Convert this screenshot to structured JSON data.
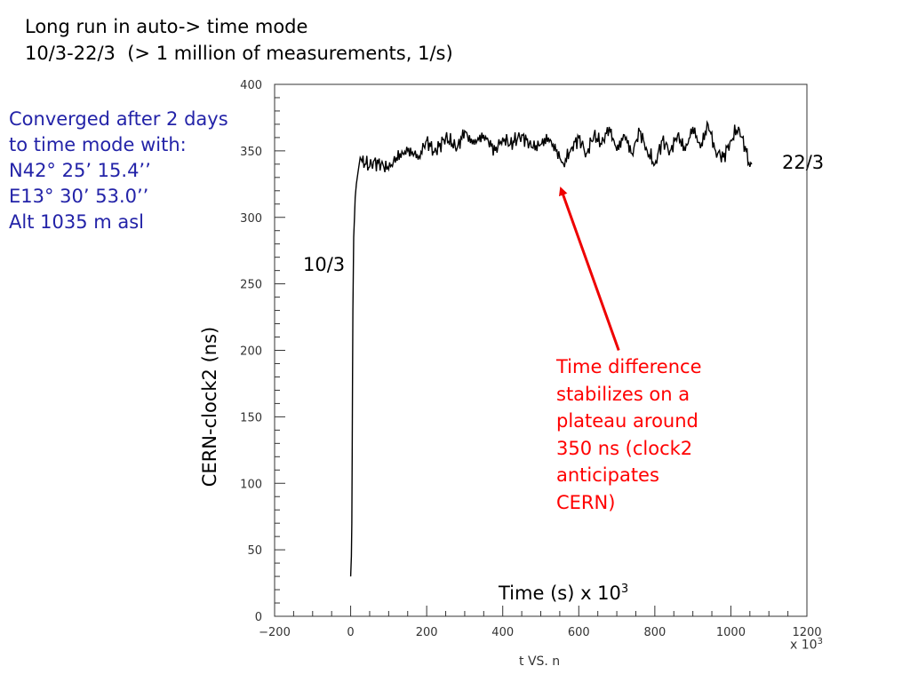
{
  "slide": {
    "title_line1": "Long run in auto-> time mode",
    "title_line2": "10/3-22/3  (> 1 million of measurements, 1/s)",
    "note_blue": [
      "Converged after 2 days",
      "to time mode with:",
      "N42° 25’ 15.4’’",
      "E13° 30’  53.0’’",
      "Alt 1035 m asl"
    ],
    "note_red": [
      "Time difference",
      "stabilizes on a",
      "plateau around",
      "350 ns (clock2",
      "anticipates",
      "CERN)"
    ],
    "date_start": "10/3",
    "date_end": "22/3",
    "xlabel_text": "Time (s) x 10",
    "xlabel_exp": "3",
    "ylabel_text": "CERN-clock2 (ns)",
    "caption": "t VS. n",
    "multiplier_text": "x 10",
    "multiplier_exp": "3",
    "colors": {
      "blue_note": "#2323a8",
      "red_note": "#ff0000",
      "arrow": "#ee0000",
      "trace": "#000000"
    }
  },
  "chart_data": {
    "type": "line",
    "xlim": [
      -200,
      1200
    ],
    "ylim": [
      0,
      400
    ],
    "x_ticks": [
      -200,
      0,
      200,
      400,
      600,
      800,
      1000,
      1200
    ],
    "x_tick_labels": [
      "−200",
      "0",
      "200",
      "400",
      "600",
      "800",
      "1000",
      "1200"
    ],
    "y_ticks": [
      0,
      50,
      100,
      150,
      200,
      250,
      300,
      350,
      400
    ],
    "y_tick_labels": [
      "0",
      "50",
      "100",
      "150",
      "200",
      "250",
      "300",
      "350",
      "400"
    ],
    "grid": false,
    "annotation_arrow": {
      "from": [
        705,
        200
      ],
      "to": [
        555,
        320
      ]
    },
    "series": [
      {
        "x": [
          0,
          2,
          3,
          4,
          5,
          6,
          7,
          8,
          10,
          12,
          15,
          20,
          25,
          30,
          40,
          50,
          60,
          80,
          100,
          120,
          150,
          180,
          200,
          220,
          250,
          280,
          300,
          320,
          350,
          380,
          400,
          420,
          450,
          480,
          500,
          520,
          540,
          560,
          580,
          600,
          620,
          640,
          660,
          680,
          700,
          720,
          740,
          760,
          780,
          800,
          820,
          840,
          860,
          880,
          900,
          920,
          940,
          960,
          980,
          1000,
          1020,
          1040,
          1050,
          1055
        ],
        "y": [
          30,
          45,
          70,
          120,
          180,
          230,
          260,
          285,
          300,
          315,
          325,
          335,
          345,
          342,
          340,
          338,
          342,
          340,
          336,
          345,
          350,
          346,
          358,
          349,
          360,
          352,
          365,
          355,
          362,
          350,
          360,
          355,
          362,
          352,
          355,
          360,
          350,
          340,
          352,
          360,
          348,
          362,
          355,
          368,
          350,
          362,
          348,
          365,
          350,
          340,
          358,
          350,
          362,
          350,
          368,
          352,
          370,
          350,
          345,
          358,
          368,
          350,
          338,
          340
        ]
      }
    ]
  }
}
